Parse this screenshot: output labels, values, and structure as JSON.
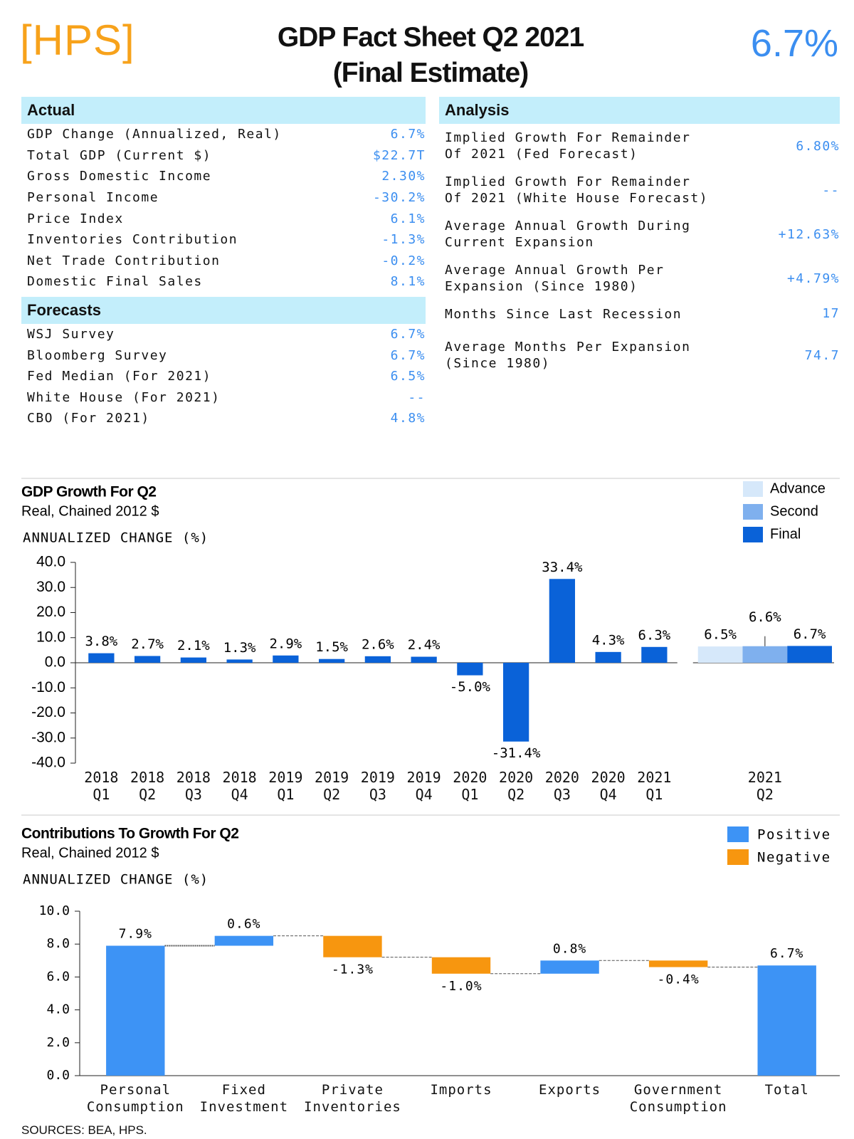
{
  "header": {
    "logo": "[HPS]",
    "title": [
      "GDP Fact Sheet Q2 2021",
      "(Final Estimate)"
    ],
    "headline": "6.7%"
  },
  "actual": {
    "heading": "Actual",
    "rows": [
      [
        "GDP Change (Annualized, Real)",
        "6.7%"
      ],
      [
        "Total GDP (Current $)",
        "$22.7T"
      ],
      [
        "Gross Domestic Income",
        "2.30%"
      ],
      [
        "Personal Income",
        "-30.2%"
      ],
      [
        "Price Index",
        "6.1%"
      ],
      [
        "Inventories Contribution",
        "-1.3%"
      ],
      [
        "Net Trade Contribution",
        "-0.2%"
      ],
      [
        "Domestic Final Sales",
        "8.1%"
      ]
    ]
  },
  "forecasts": {
    "heading": "Forecasts",
    "rows": [
      [
        "WSJ Survey",
        "6.7%"
      ],
      [
        "Bloomberg Survey",
        "6.7%"
      ],
      [
        "Fed Median (For 2021)",
        "6.5%"
      ],
      [
        "White House (For 2021)",
        "--"
      ],
      [
        "CBO (For 2021)",
        "4.8%"
      ]
    ]
  },
  "analysis": {
    "heading": "Analysis",
    "rows": [
      [
        "Implied Growth For Remainder Of 2021 (Fed Forecast)",
        "6.80%"
      ],
      [
        "Implied Growth For Remainder Of 2021 (White House Forecast)",
        "--"
      ],
      [
        "Average Annual Growth During Current Expansion",
        "+12.63%"
      ],
      [
        "Average Annual Growth Per Expansion (Since 1980)",
        "+4.79%"
      ],
      [
        "Months Since Last Recession",
        "17"
      ],
      [
        "Average Months Per Expansion (Since 1980)",
        "74.7"
      ]
    ]
  },
  "chart_data": [
    {
      "type": "bar",
      "title": "GDP Growth For Q2",
      "subtitle": "Real, Chained 2012 $",
      "y_label": "ANNUALIZED CHANGE (%)",
      "categories": [
        "2018 Q1",
        "2018 Q2",
        "2018 Q3",
        "2018 Q4",
        "2019 Q1",
        "2019 Q2",
        "2019 Q3",
        "2019 Q4",
        "2020 Q1",
        "2020 Q2",
        "2020 Q3",
        "2020 Q4",
        "2021 Q1",
        "2021 Q2"
      ],
      "series": [
        {
          "name": "Advance",
          "color": "#d6e8fa",
          "values": [
            null,
            null,
            null,
            null,
            null,
            null,
            null,
            null,
            null,
            null,
            null,
            null,
            null,
            6.5
          ],
          "value_labels": [
            null,
            null,
            null,
            null,
            null,
            null,
            null,
            null,
            null,
            null,
            null,
            null,
            null,
            "6.5%"
          ]
        },
        {
          "name": "Second",
          "color": "#7fb0ee",
          "values": [
            null,
            null,
            null,
            null,
            null,
            null,
            null,
            null,
            null,
            null,
            null,
            null,
            null,
            6.6
          ],
          "value_labels": [
            null,
            null,
            null,
            null,
            null,
            null,
            null,
            null,
            null,
            null,
            null,
            null,
            null,
            "6.6%"
          ]
        },
        {
          "name": "Final",
          "color": "#0a62d8",
          "values": [
            3.8,
            2.7,
            2.1,
            1.3,
            2.9,
            1.5,
            2.6,
            2.4,
            -5.0,
            -31.4,
            33.4,
            4.3,
            6.3,
            6.7
          ],
          "value_labels": [
            "3.8%",
            "2.7%",
            "2.1%",
            "1.3%",
            "2.9%",
            "1.5%",
            "2.6%",
            "2.4%",
            "-5.0%",
            "-31.4%",
            "33.4%",
            "4.3%",
            "6.3%",
            "6.7%"
          ]
        }
      ],
      "ylim": [
        -40,
        40
      ],
      "yticks": [
        {
          "value": 40,
          "label": "40.0"
        },
        {
          "value": 30,
          "label": "30.0"
        },
        {
          "value": 20,
          "label": "20.0"
        },
        {
          "value": 10,
          "label": "10.0"
        },
        {
          "value": 0,
          "label": "0.0"
        },
        {
          "value": -10,
          "label": "-10.0"
        },
        {
          "value": -20,
          "label": "-20.0"
        },
        {
          "value": -30,
          "label": "-30.0"
        },
        {
          "value": -40,
          "label": "-40.0"
        }
      ],
      "legend": "top-right"
    },
    {
      "type": "waterfall",
      "title": "Contributions To Growth For Q2",
      "subtitle": "Real, Chained 2012 $",
      "y_label": "ANNUALIZED CHANGE (%)",
      "categories": [
        "Personal Consumption",
        "Fixed Investment",
        "Private Inventories",
        "Imports",
        "Exports",
        "Government Consumption",
        "Total"
      ],
      "values": [
        7.9,
        0.6,
        -1.3,
        -1.0,
        0.8,
        -0.4,
        6.7
      ],
      "value_labels": [
        "7.9%",
        "0.6%",
        "-1.3%",
        "-1.0%",
        "0.8%",
        "-0.4%",
        "6.7%"
      ],
      "total": "Total",
      "legend_entries": [
        {
          "name": "Positive",
          "color": "#3d93f5"
        },
        {
          "name": "Negative",
          "color": "#f7960f"
        }
      ],
      "ylim": [
        0,
        10
      ],
      "yticks": [
        {
          "value": 10,
          "label": "10.0"
        },
        {
          "value": 8,
          "label": "8.0"
        },
        {
          "value": 6,
          "label": "6.0"
        },
        {
          "value": 4,
          "label": "4.0"
        },
        {
          "value": 2,
          "label": "2.0"
        },
        {
          "value": 0,
          "label": "0.0"
        }
      ],
      "legend": "top-right"
    }
  ],
  "footer": {
    "sources": "SOURCES: BEA, HPS."
  }
}
